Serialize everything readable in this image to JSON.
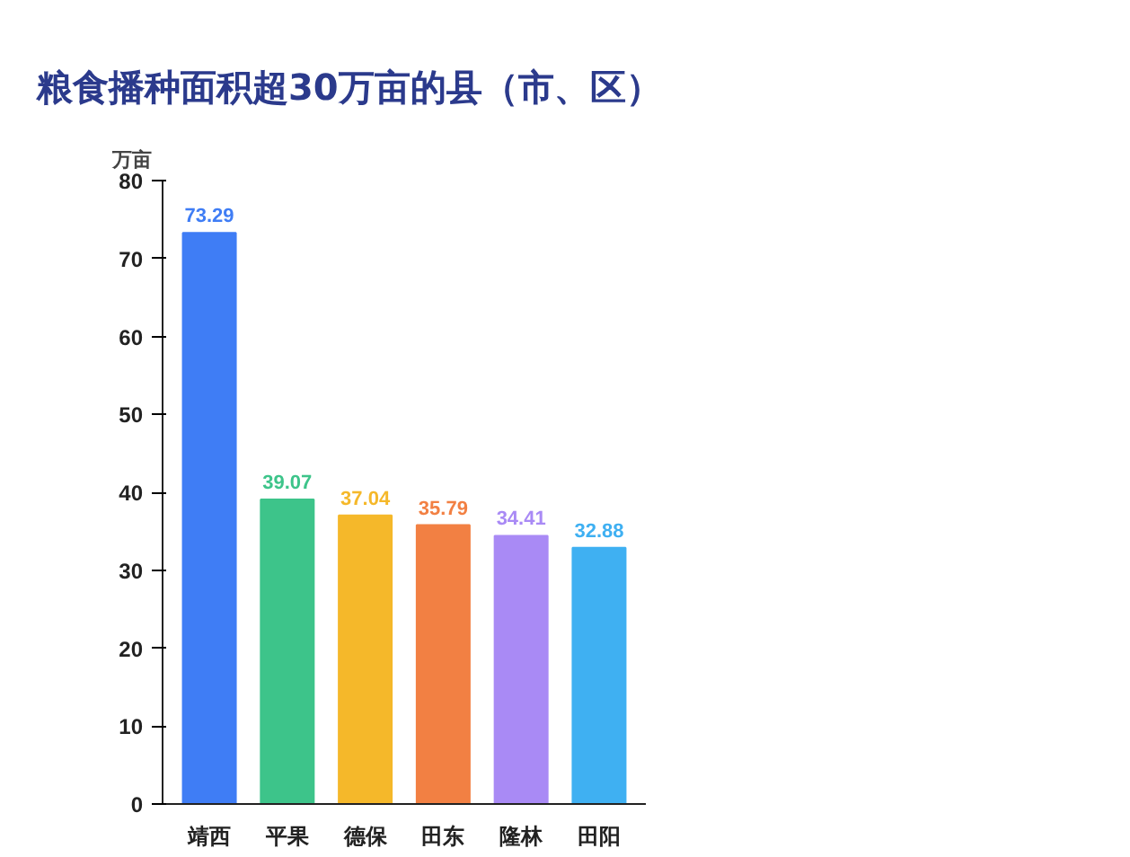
{
  "chart_data": {
    "type": "bar",
    "title": "粮食播种面积超30万亩的县（市、区）",
    "ylabel": "万亩",
    "categories": [
      "靖西",
      "平果",
      "德保",
      "田东",
      "隆林",
      "田阳"
    ],
    "values": [
      73.29,
      39.07,
      37.04,
      35.79,
      34.41,
      32.88
    ],
    "colors": [
      "#3f7df5",
      "#3dc48a",
      "#f5b82a",
      "#f28043",
      "#a98af5",
      "#3fb0f2"
    ],
    "ylim": [
      0,
      80
    ],
    "yticks": [
      0,
      10,
      20,
      30,
      40,
      50,
      60,
      70,
      80
    ],
    "grid": false,
    "data_labels": true
  }
}
